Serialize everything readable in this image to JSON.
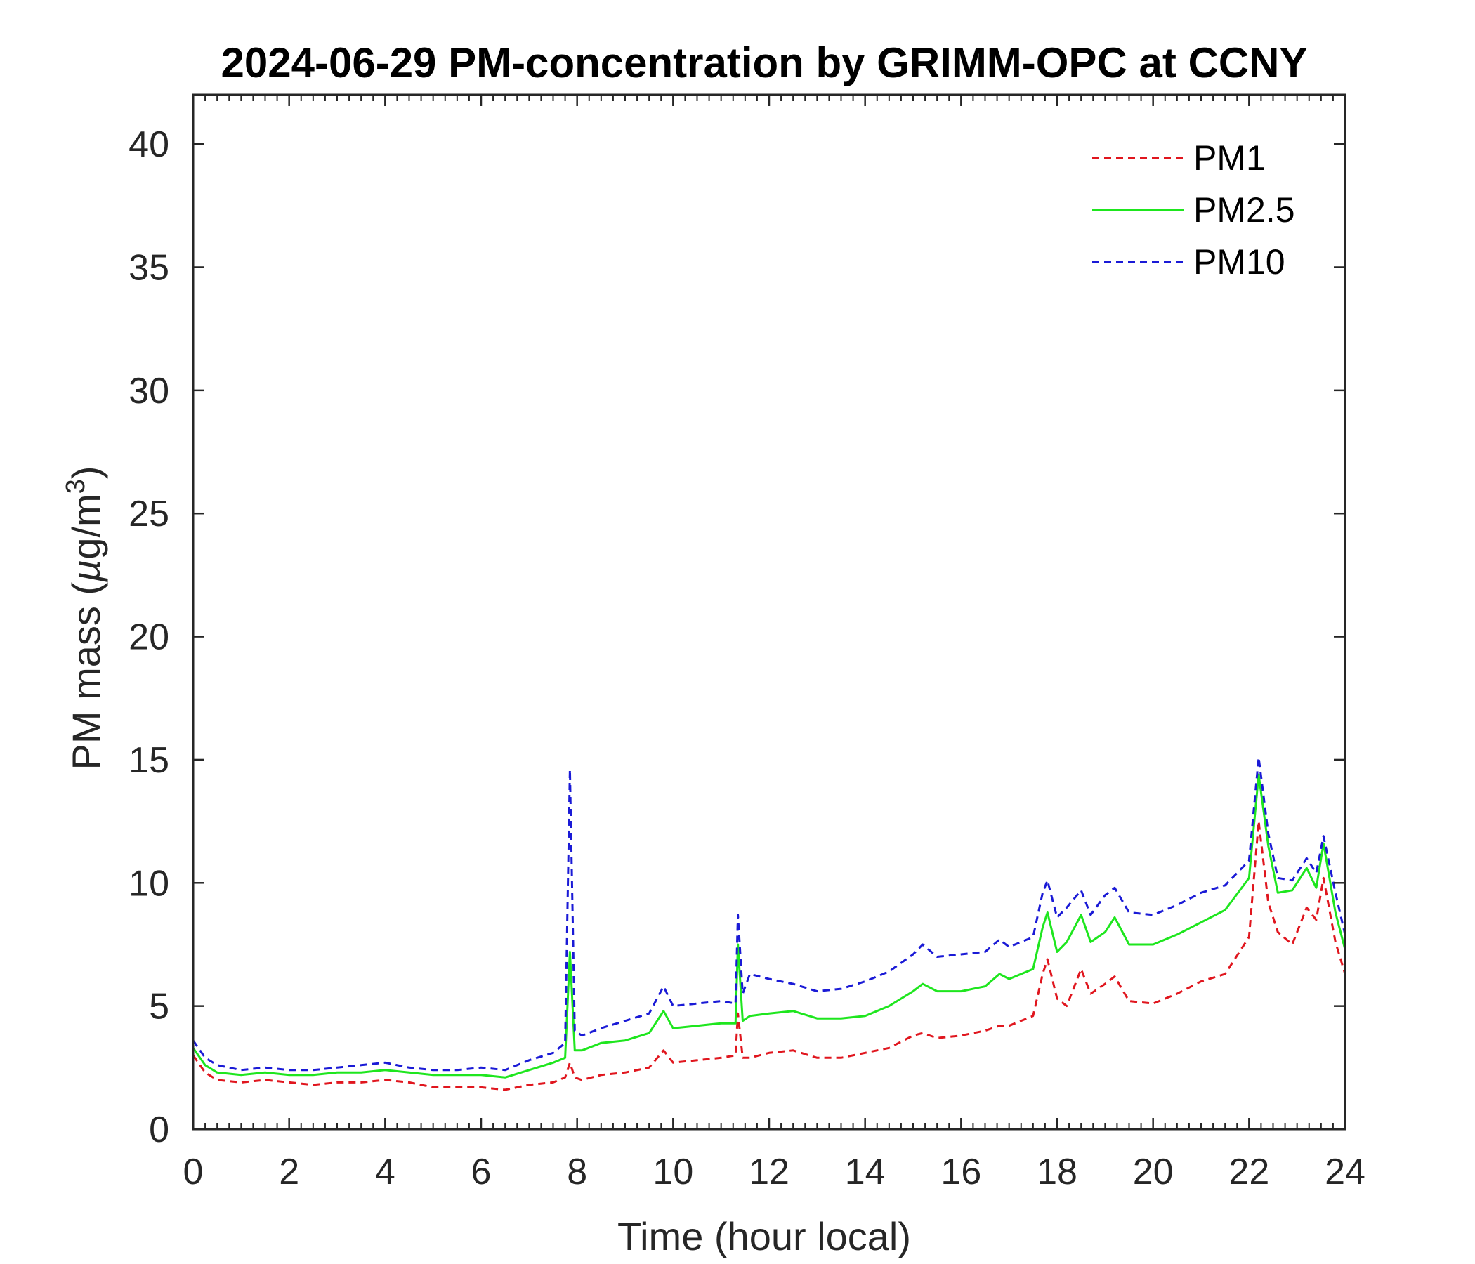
{
  "chart_data": {
    "type": "line",
    "title": "2024-06-29 PM-concentration by GRIMM-OPC at CCNY",
    "xlabel": "Time (hour local)",
    "ylabel": "PM mass (µg/m³)",
    "ylabel_parts": {
      "main": "PM mass (",
      "mu": "µ",
      "unit": "g/m",
      "sup": "3",
      "close": ")"
    },
    "xlim": [
      0,
      24
    ],
    "ylim": [
      0,
      42
    ],
    "xticks": [
      0,
      2,
      4,
      6,
      8,
      10,
      12,
      14,
      16,
      18,
      20,
      22,
      24
    ],
    "yticks": [
      0,
      5,
      10,
      15,
      20,
      25,
      30,
      35,
      40
    ],
    "grid": false,
    "legend_position": "top-right",
    "x": [
      0,
      0.25,
      0.5,
      1,
      1.5,
      2,
      2.5,
      3,
      3.5,
      4,
      4.5,
      5,
      5.5,
      6,
      6.5,
      7,
      7.5,
      7.75,
      7.85,
      7.95,
      8.1,
      8.5,
      9,
      9.5,
      9.8,
      10,
      10.5,
      11,
      11.3,
      11.35,
      11.45,
      11.6,
      12,
      12.5,
      13,
      13.5,
      14,
      14.5,
      15,
      15.2,
      15.5,
      16,
      16.5,
      16.8,
      17,
      17.5,
      17.7,
      17.8,
      18,
      18.2,
      18.5,
      18.7,
      19,
      19.2,
      19.5,
      20,
      20.5,
      21,
      21.5,
      22,
      22.2,
      22.4,
      22.6,
      22.9,
      23.2,
      23.4,
      23.55,
      23.8,
      24
    ],
    "series": [
      {
        "name": "PM1",
        "color": "#e0161e",
        "dash": "10,7",
        "values": [
          3.0,
          2.3,
          2.0,
          1.9,
          2.0,
          1.9,
          1.8,
          1.9,
          1.9,
          2.0,
          1.9,
          1.7,
          1.7,
          1.7,
          1.6,
          1.8,
          1.9,
          2.1,
          2.7,
          2.1,
          2.0,
          2.2,
          2.3,
          2.5,
          3.2,
          2.7,
          2.8,
          2.9,
          3.0,
          4.7,
          2.9,
          2.9,
          3.1,
          3.2,
          2.9,
          2.9,
          3.1,
          3.3,
          3.8,
          3.9,
          3.7,
          3.8,
          4.0,
          4.2,
          4.2,
          4.6,
          6.3,
          6.9,
          5.3,
          5.0,
          6.5,
          5.5,
          5.9,
          6.2,
          5.2,
          5.1,
          5.5,
          6.0,
          6.3,
          7.8,
          12.5,
          9.2,
          8.0,
          7.5,
          9.0,
          8.5,
          10.2,
          7.6,
          6.3
        ]
      },
      {
        "name": "PM2.5",
        "color": "#1ee61e",
        "dash": "",
        "values": [
          3.3,
          2.6,
          2.3,
          2.2,
          2.3,
          2.2,
          2.2,
          2.3,
          2.3,
          2.4,
          2.3,
          2.2,
          2.2,
          2.2,
          2.1,
          2.4,
          2.7,
          2.9,
          7.2,
          3.2,
          3.2,
          3.5,
          3.6,
          3.9,
          4.8,
          4.1,
          4.2,
          4.3,
          4.3,
          7.5,
          4.4,
          4.6,
          4.7,
          4.8,
          4.5,
          4.5,
          4.6,
          5.0,
          5.6,
          5.9,
          5.6,
          5.6,
          5.8,
          6.3,
          6.1,
          6.5,
          8.2,
          8.8,
          7.2,
          7.6,
          8.7,
          7.6,
          8.0,
          8.6,
          7.5,
          7.5,
          7.9,
          8.4,
          8.9,
          10.2,
          14.4,
          11.5,
          9.6,
          9.7,
          10.6,
          9.8,
          11.6,
          8.8,
          7.3
        ]
      },
      {
        "name": "PM10",
        "color": "#1a1ad6",
        "dash": "10,7",
        "values": [
          3.6,
          2.9,
          2.6,
          2.4,
          2.5,
          2.4,
          2.4,
          2.5,
          2.6,
          2.7,
          2.5,
          2.4,
          2.4,
          2.5,
          2.4,
          2.8,
          3.1,
          3.5,
          14.6,
          4.0,
          3.8,
          4.1,
          4.4,
          4.7,
          5.8,
          5.0,
          5.1,
          5.2,
          5.1,
          8.7,
          5.5,
          6.3,
          6.1,
          5.9,
          5.6,
          5.7,
          6.0,
          6.4,
          7.1,
          7.5,
          7.0,
          7.1,
          7.2,
          7.7,
          7.4,
          7.8,
          9.6,
          10.1,
          8.6,
          9.0,
          9.7,
          8.7,
          9.5,
          9.8,
          8.8,
          8.7,
          9.1,
          9.6,
          9.9,
          10.9,
          15.1,
          12.0,
          10.2,
          10.1,
          11.0,
          10.4,
          11.9,
          9.6,
          7.9
        ]
      }
    ]
  }
}
